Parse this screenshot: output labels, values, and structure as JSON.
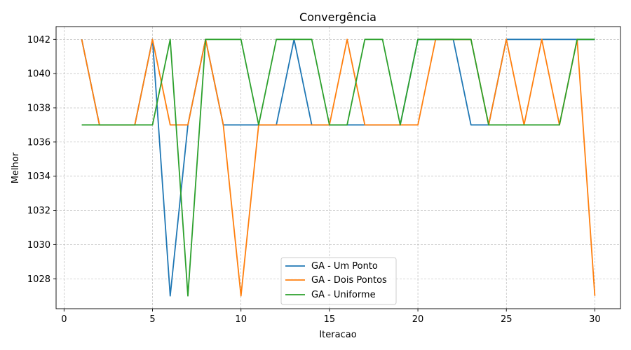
{
  "chart_data": {
    "type": "line",
    "title": "Convergência",
    "xlabel": "Iteracao",
    "ylabel": "Melhor",
    "xlim": [
      -0.45,
      31.45
    ],
    "ylim": [
      1026.25,
      1042.75
    ],
    "xticks": [
      0,
      5,
      10,
      15,
      20,
      25,
      30
    ],
    "yticks": [
      1028,
      1030,
      1032,
      1034,
      1036,
      1038,
      1040,
      1042
    ],
    "grid": true,
    "legend_position": "lower-center",
    "x": [
      1,
      2,
      3,
      4,
      5,
      6,
      7,
      8,
      9,
      10,
      11,
      12,
      13,
      14,
      15,
      16,
      17,
      18,
      19,
      20,
      21,
      22,
      23,
      24,
      25,
      26,
      27,
      28,
      29,
      30
    ],
    "series": [
      {
        "name": "GA - Um Ponto",
        "color": "#1f77b4",
        "values": [
          1042,
          1037,
          1037,
          1037,
          1042,
          1027,
          1037,
          1042,
          1037,
          1037,
          1037,
          1037,
          1042,
          1037,
          1037,
          1037,
          1037,
          1037,
          1037,
          1042,
          1042,
          1042,
          1037,
          1037,
          1042,
          1042,
          1042,
          1042,
          1042,
          1042
        ]
      },
      {
        "name": "GA - Dois Pontos",
        "color": "#ff7f0e",
        "values": [
          1042,
          1037,
          1037,
          1037,
          1042,
          1037,
          1037,
          1042,
          1037,
          1027,
          1037,
          1037,
          1037,
          1037,
          1037,
          1042,
          1037,
          1037,
          1037,
          1037,
          1042,
          1042,
          1042,
          1037,
          1042,
          1037,
          1042,
          1037,
          1042,
          1027
        ]
      },
      {
        "name": "GA - Uniforme",
        "color": "#2ca02c",
        "values": [
          1037,
          1037,
          1037,
          1037,
          1037,
          1042,
          1027,
          1042,
          1042,
          1042,
          1037,
          1042,
          1042,
          1042,
          1037,
          1037,
          1042,
          1042,
          1037,
          1042,
          1042,
          1042,
          1042,
          1037,
          1037,
          1037,
          1037,
          1037,
          1042,
          1042
        ]
      }
    ]
  }
}
